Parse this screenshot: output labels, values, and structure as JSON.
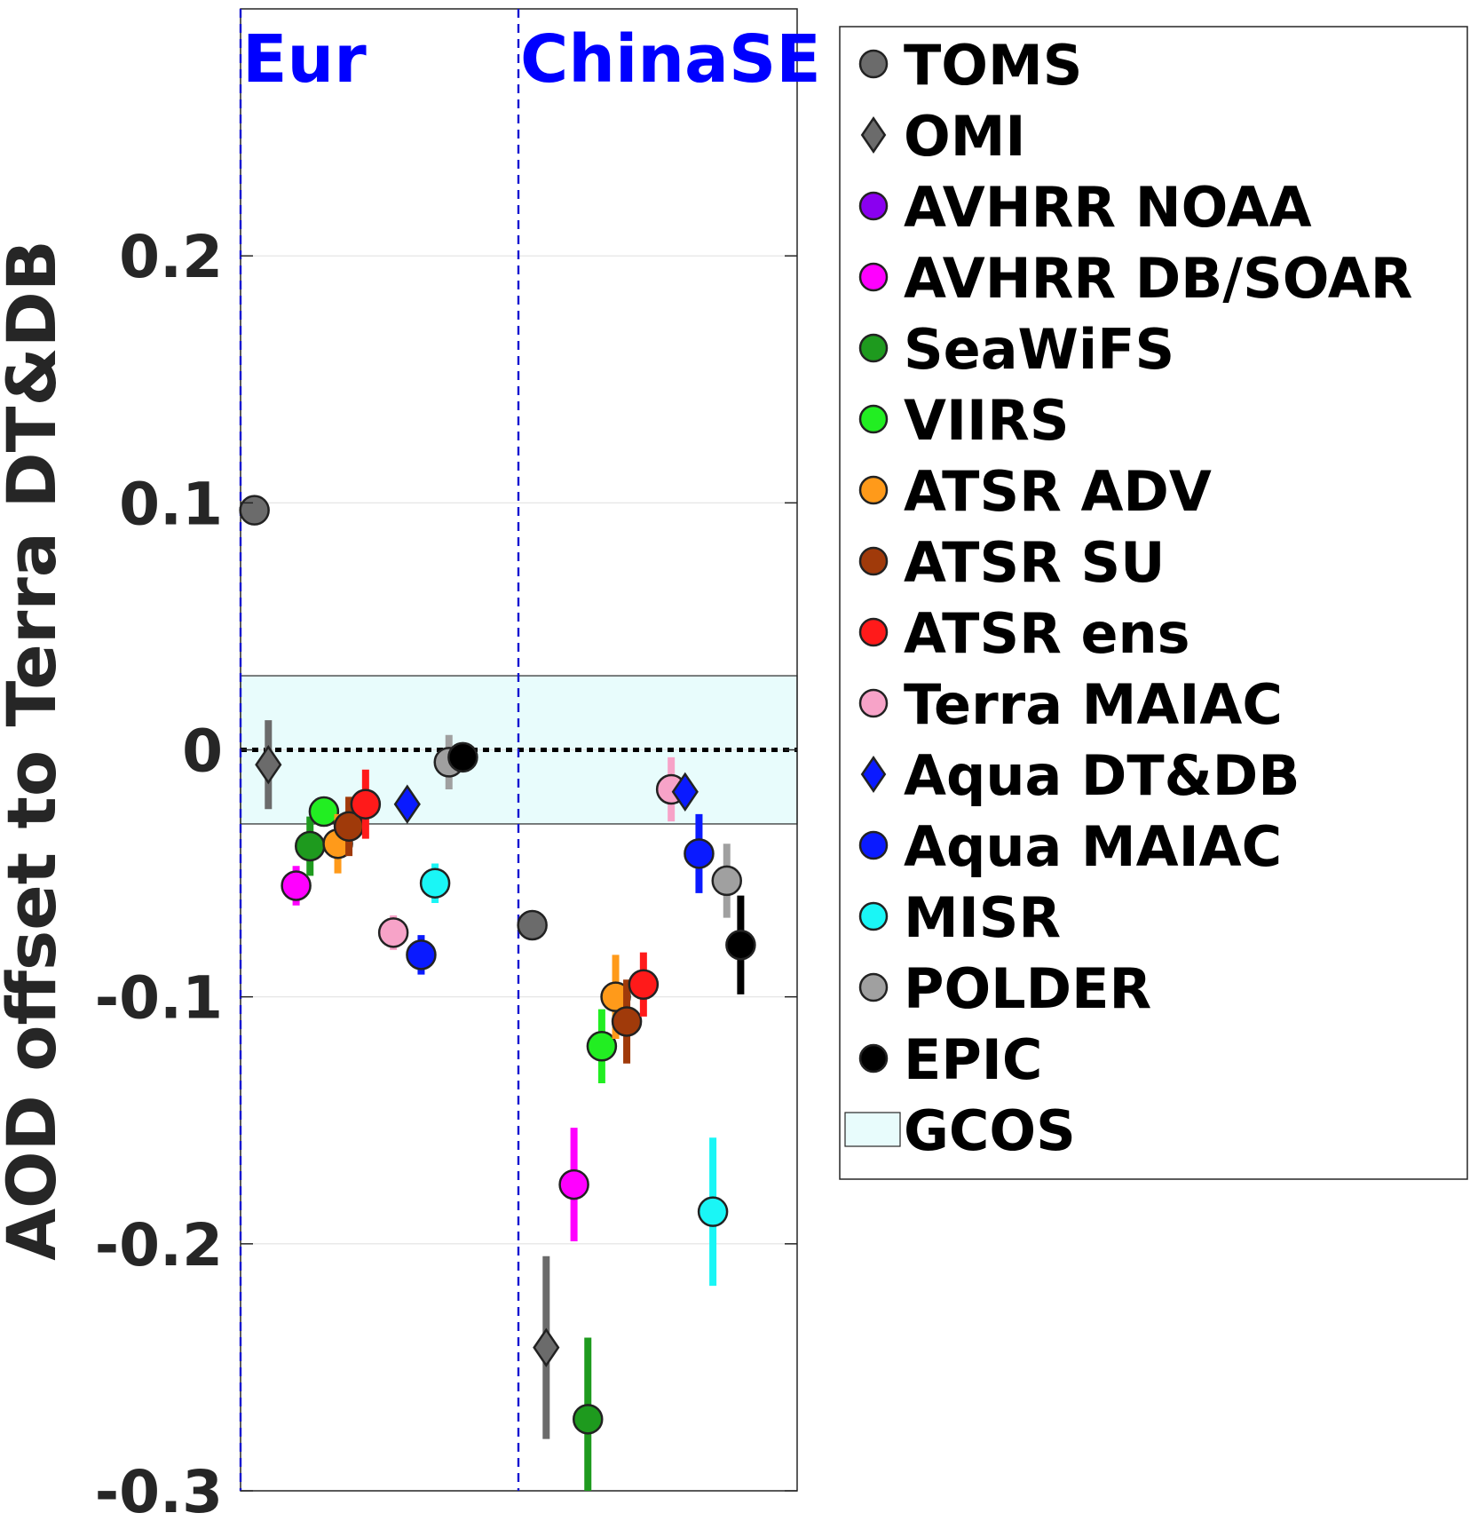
{
  "chart_data": {
    "type": "scatter",
    "ylabel": "AOD offset to Terra DT&DB",
    "ylim": [
      -0.3,
      0.3
    ],
    "yticks": [
      0.2,
      0.1,
      0,
      -0.1,
      -0.2,
      -0.3
    ],
    "ytick_labels": [
      "0.2",
      "0.1",
      "0",
      "-0.1",
      "-0.2",
      "-0.3"
    ],
    "grid": true,
    "legend_placement": "outside-right",
    "regions": [
      "Eur",
      "ChinaSE"
    ],
    "gcos_band": {
      "label": "GCOS",
      "range": [
        -0.03,
        0.03
      ],
      "color": "#e8fcfc"
    },
    "series": [
      {
        "name": "TOMS",
        "marker": "circle",
        "color": "#6b6b6b",
        "points": [
          {
            "region": "Eur",
            "offset": 0.05,
            "y": 0.097,
            "err": 0
          },
          {
            "region": "ChinaSE",
            "offset": 0.05,
            "y": -0.071,
            "err": 0
          }
        ]
      },
      {
        "name": "OMI",
        "marker": "diamond",
        "color": "#6b6b6b",
        "points": [
          {
            "region": "Eur",
            "offset": 0.1,
            "y": -0.006,
            "err": 0.018
          },
          {
            "region": "ChinaSE",
            "offset": 0.1,
            "y": -0.242,
            "err": 0.037
          }
        ]
      },
      {
        "name": "AVHRR NOAA",
        "marker": "circle",
        "color": "#8a00f0",
        "points": []
      },
      {
        "name": "AVHRR DB/SOAR",
        "marker": "circle",
        "color": "#ff00ff",
        "points": [
          {
            "region": "Eur",
            "offset": 0.2,
            "y": -0.055,
            "err": 0.008
          },
          {
            "region": "ChinaSE",
            "offset": 0.2,
            "y": -0.176,
            "err": 0.023
          }
        ]
      },
      {
        "name": "SeaWiFS",
        "marker": "circle",
        "color": "#1e9a1e",
        "points": [
          {
            "region": "Eur",
            "offset": 0.25,
            "y": -0.039,
            "err": 0.012
          },
          {
            "region": "ChinaSE",
            "offset": 0.25,
            "y": -0.271,
            "err": 0.033
          }
        ]
      },
      {
        "name": "VIIRS",
        "marker": "circle",
        "color": "#22ee22",
        "points": [
          {
            "region": "Eur",
            "offset": 0.3,
            "y": -0.025,
            "err": 0.006
          },
          {
            "region": "ChinaSE",
            "offset": 0.3,
            "y": -0.12,
            "err": 0.015
          }
        ]
      },
      {
        "name": "ATSR ADV",
        "marker": "circle",
        "color": "#ff9a1a",
        "points": [
          {
            "region": "Eur",
            "offset": 0.35,
            "y": -0.038,
            "err": 0.012
          },
          {
            "region": "ChinaSE",
            "offset": 0.35,
            "y": -0.1,
            "err": 0.017
          }
        ]
      },
      {
        "name": "ATSR SU",
        "marker": "circle",
        "color": "#a03a0a",
        "points": [
          {
            "region": "Eur",
            "offset": 0.39,
            "y": -0.031,
            "err": 0.012
          },
          {
            "region": "ChinaSE",
            "offset": 0.39,
            "y": -0.11,
            "err": 0.017
          }
        ]
      },
      {
        "name": "ATSR ens",
        "marker": "circle",
        "color": "#ff1a1a",
        "points": [
          {
            "region": "Eur",
            "offset": 0.45,
            "y": -0.022,
            "err": 0.014
          },
          {
            "region": "ChinaSE",
            "offset": 0.45,
            "y": -0.095,
            "err": 0.013
          }
        ]
      },
      {
        "name": "Terra MAIAC",
        "marker": "circle",
        "color": "#f7a3c8",
        "points": [
          {
            "region": "Eur",
            "offset": 0.55,
            "y": -0.074,
            "err": 0.007
          },
          {
            "region": "ChinaSE",
            "offset": 0.55,
            "y": -0.016,
            "err": 0.013
          }
        ]
      },
      {
        "name": "Aqua DT&DB",
        "marker": "diamond",
        "color": "#0a1aff",
        "points": [
          {
            "region": "Eur",
            "offset": 0.6,
            "y": -0.022,
            "err": 0
          },
          {
            "region": "ChinaSE",
            "offset": 0.6,
            "y": -0.017,
            "err": 0
          }
        ]
      },
      {
        "name": "Aqua MAIAC",
        "marker": "circle",
        "color": "#0a1aff",
        "points": [
          {
            "region": "Eur",
            "offset": 0.65,
            "y": -0.083,
            "err": 0.008
          },
          {
            "region": "ChinaSE",
            "offset": 0.65,
            "y": -0.042,
            "err": 0.016
          }
        ]
      },
      {
        "name": "MISR",
        "marker": "circle",
        "color": "#1af6f6",
        "points": [
          {
            "region": "Eur",
            "offset": 0.7,
            "y": -0.054,
            "err": 0.008
          },
          {
            "region": "ChinaSE",
            "offset": 0.7,
            "y": -0.187,
            "err": 0.03
          }
        ]
      },
      {
        "name": "POLDER",
        "marker": "circle",
        "color": "#a0a0a0",
        "points": [
          {
            "region": "Eur",
            "offset": 0.75,
            "y": -0.005,
            "err": 0.011
          },
          {
            "region": "ChinaSE",
            "offset": 0.75,
            "y": -0.053,
            "err": 0.015
          }
        ]
      },
      {
        "name": "EPIC",
        "marker": "circle",
        "color": "#000000",
        "points": [
          {
            "region": "Eur",
            "offset": 0.8,
            "y": -0.003,
            "err": 0
          },
          {
            "region": "ChinaSE",
            "offset": 0.8,
            "y": -0.079,
            "err": 0.02
          }
        ]
      }
    ]
  }
}
